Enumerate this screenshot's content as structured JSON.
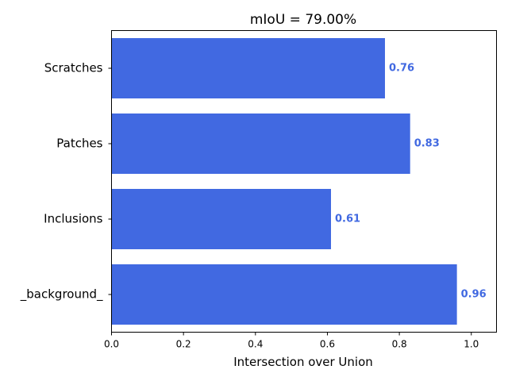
{
  "chart_data": {
    "type": "bar",
    "orientation": "horizontal",
    "title": "mIoU = 79.00%",
    "xlabel": "Intersection over Union",
    "ylabel": "",
    "categories": [
      "Scratches",
      "Patches",
      "Inclusions",
      "_background_"
    ],
    "values": [
      0.76,
      0.83,
      0.61,
      0.96
    ],
    "value_labels": [
      "0.76",
      "0.83",
      "0.61",
      "0.96"
    ],
    "xlim": [
      0,
      1.07
    ],
    "xticks": [
      0.0,
      0.2,
      0.4,
      0.6,
      0.8,
      1.0
    ],
    "xtick_labels": [
      "0.0",
      "0.2",
      "0.4",
      "0.6",
      "0.8",
      "1.0"
    ],
    "bar_color": "#4169e1",
    "label_color": "#4169e1",
    "grid": false
  }
}
